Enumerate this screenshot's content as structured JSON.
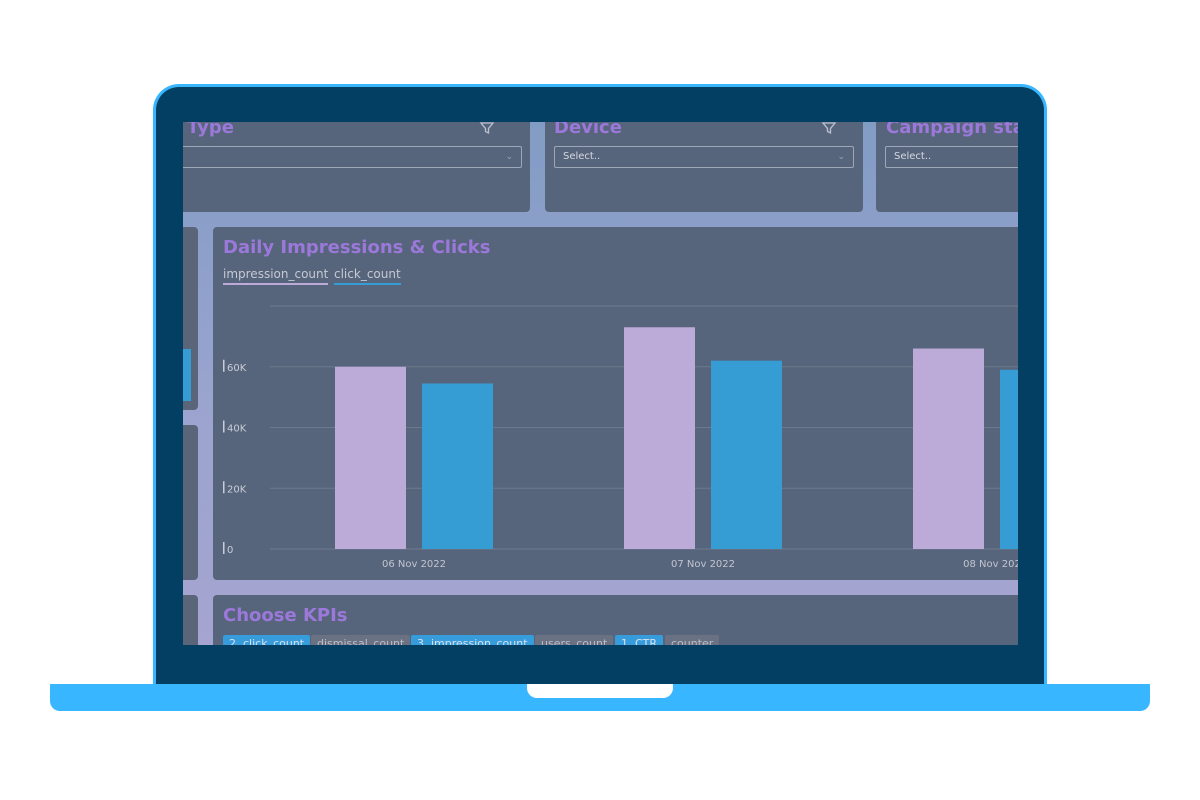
{
  "filters": [
    {
      "title": "Type",
      "value": ""
    },
    {
      "title": "Device",
      "value": "Select.."
    },
    {
      "title": "Campaign stat",
      "value": "Select.."
    }
  ],
  "chart_panel": {
    "title": "Daily Impressions & Clicks",
    "legend": [
      {
        "label": "impression_count",
        "color": "#c9b6e4"
      },
      {
        "label": "click_count",
        "color": "#38a5e0"
      }
    ]
  },
  "chart_data": {
    "type": "bar",
    "title": "Daily Impressions & Clicks",
    "categories": [
      "06 Nov 2022",
      "07 Nov 2022",
      "08 Nov 202"
    ],
    "series": [
      {
        "name": "impression_count",
        "values": [
          60000,
          73000,
          66000
        ],
        "color": "#c9b6e4"
      },
      {
        "name": "click_count",
        "values": [
          54500,
          62000,
          59000
        ],
        "color": "#38a5e0"
      }
    ],
    "yticks": [
      0,
      20000,
      40000,
      60000
    ],
    "ytick_labels": [
      "0",
      "20K",
      "40K",
      "60K"
    ],
    "ylim": [
      0,
      80000
    ],
    "grid": true,
    "legend_position": "top-left"
  },
  "kpis": {
    "title": "Choose KPIs",
    "items": [
      {
        "label": "2. click_count",
        "selected": true
      },
      {
        "label": "dismissal_count",
        "selected": false
      },
      {
        "label": "3. impression_count",
        "selected": true
      },
      {
        "label": "users_count",
        "selected": false
      },
      {
        "label": "1. CTR",
        "selected": true
      },
      {
        "label": "counter",
        "selected": false
      }
    ]
  }
}
